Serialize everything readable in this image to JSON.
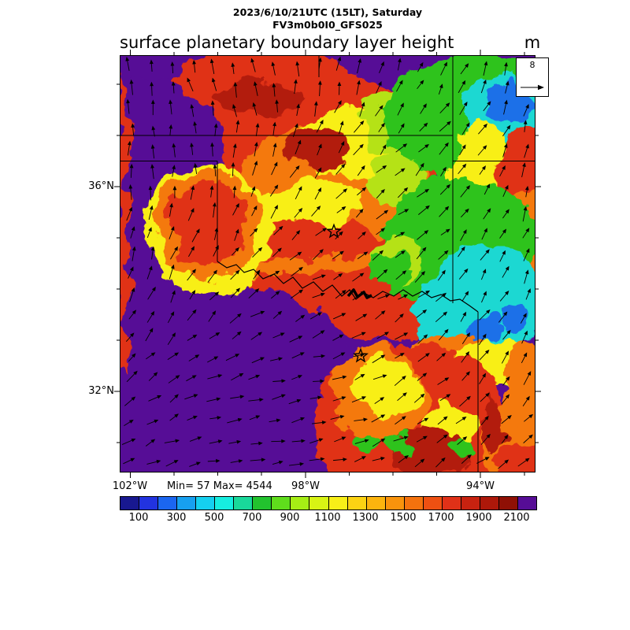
{
  "header": {
    "datetime_line": "2023/6/10/21UTC (15LT), Saturday",
    "model_line": "FV3m0b0I0_GFS025",
    "title": "surface planetary boundary layer height",
    "units": "m"
  },
  "wind_legend": {
    "reference_value": "8"
  },
  "stats_line": "Min= 57 Max= 4544",
  "axes": {
    "lat_ticks": [
      {
        "label": "36°N",
        "value": 36
      },
      {
        "label": "32°N",
        "value": 32
      }
    ],
    "lon_ticks": [
      {
        "label": "102°W",
        "value": 102
      },
      {
        "label": "98°W",
        "value": 98
      },
      {
        "label": "94°W",
        "value": 94
      }
    ]
  },
  "colorbar": {
    "tick_labels": [
      "100",
      "300",
      "500",
      "700",
      "900",
      "1100",
      "1300",
      "1500",
      "1700",
      "1900",
      "2100"
    ],
    "colors": [
      "#181890",
      "#2233e0",
      "#1b66f0",
      "#17a0f0",
      "#15d0f0",
      "#16eee0",
      "#19d89a",
      "#22c32e",
      "#5fdd1c",
      "#a6ee15",
      "#d8f414",
      "#f8ef18",
      "#fcd313",
      "#fcb40e",
      "#f9930c",
      "#f4720e",
      "#ee5012",
      "#e03118",
      "#c82210",
      "#ad180a",
      "#8f1005",
      "#560d96"
    ]
  },
  "map": {
    "field_colors": {
      "purple": "#560d96",
      "red": "#e03118",
      "dark_red": "#b21a0a",
      "orange": "#f4790f",
      "yellow": "#f8ef18",
      "yellow_green": "#b5e216",
      "green": "#2fc31f",
      "cyan": "#1fd8d2",
      "blue": "#1e6fe8"
    }
  }
}
